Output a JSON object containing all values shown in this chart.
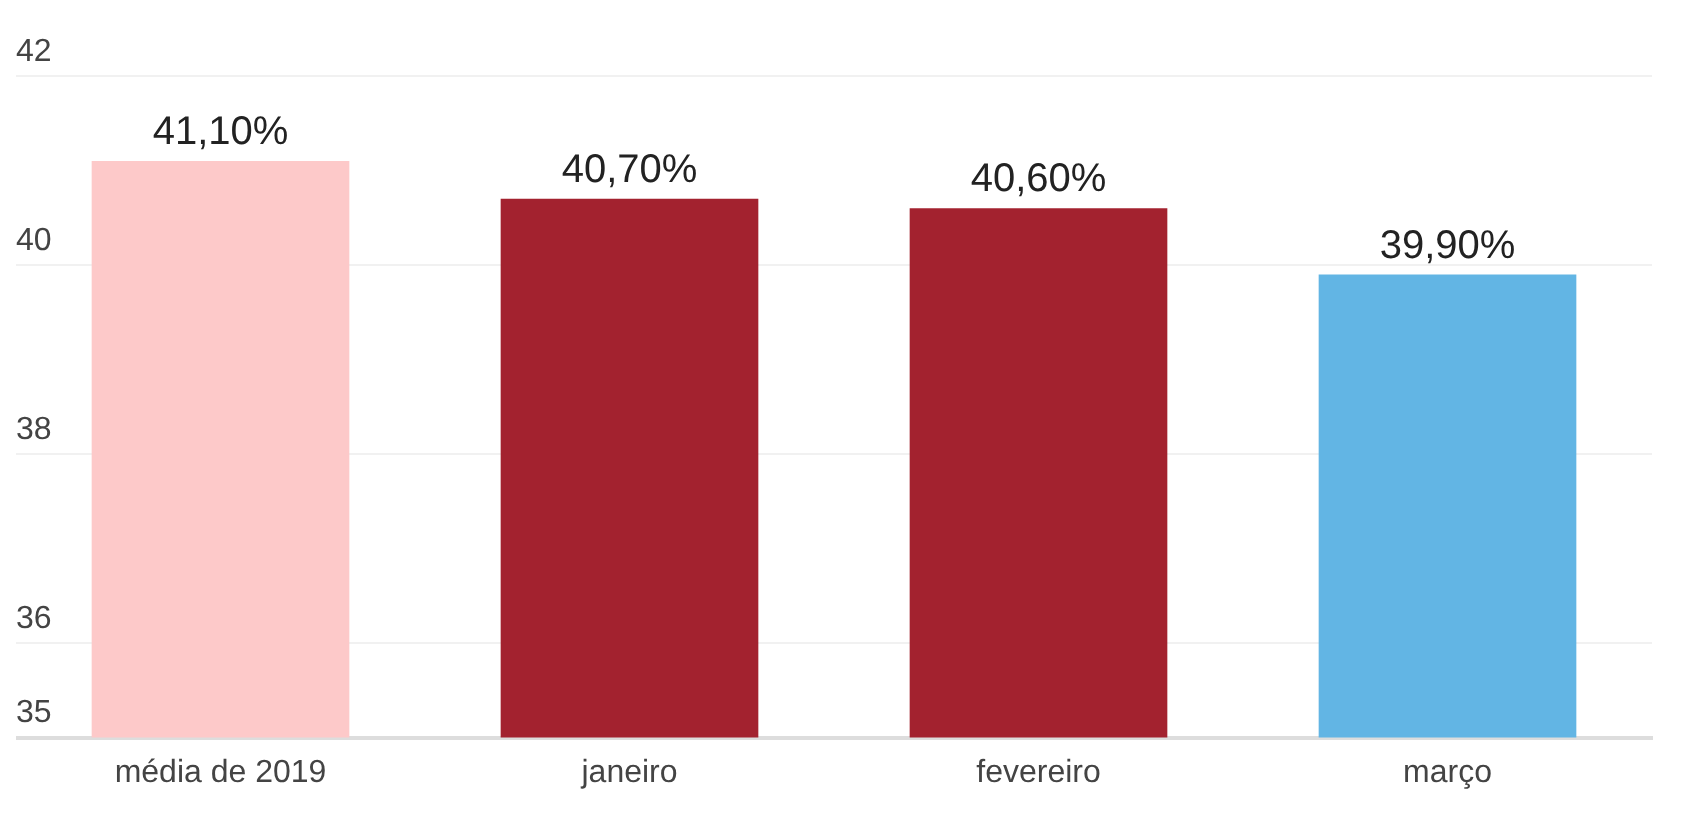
{
  "chart_data": {
    "type": "bar",
    "categories": [
      "média de 2019",
      "janeiro",
      "fevereiro",
      "março"
    ],
    "values": [
      41.1,
      40.7,
      40.6,
      39.9
    ],
    "colors": [
      "#fdc9c9",
      "#a3222f",
      "#a3222f",
      "#62b5e4"
    ],
    "value_labels": [
      "41,10%",
      "40,70%",
      "40,60%",
      "39,90%"
    ],
    "ylim": [
      35,
      42
    ],
    "yticks": [
      35,
      36,
      38,
      40,
      42
    ],
    "grid": "y"
  }
}
